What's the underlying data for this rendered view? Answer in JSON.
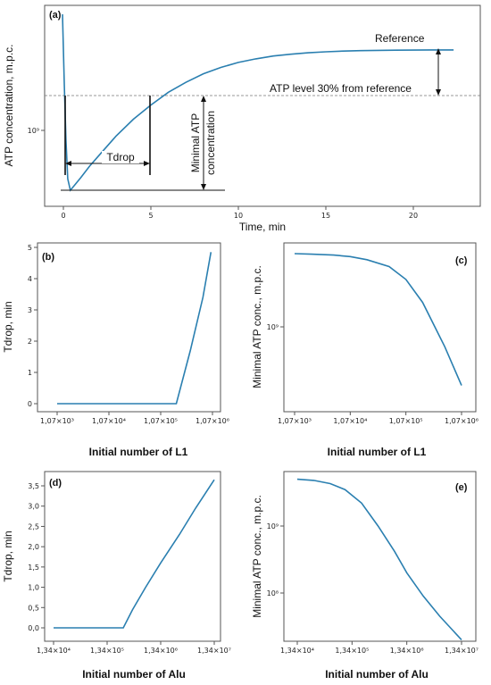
{
  "colors": {
    "curve": "#2a7fb0",
    "axis": "#555555",
    "text": "#111111",
    "dashed": "#777777"
  },
  "chart_data": [
    {
      "id": "a",
      "panel_label": "(a)",
      "type": "line",
      "xlabel": "Time, min",
      "ylabel": "ATP concentration, m.p.c.",
      "x_ticks": [
        "0",
        "5",
        "10",
        "15",
        "20"
      ],
      "y_ticks": [
        "10⁹"
      ],
      "xlim": [
        -1.2,
        23.5
      ],
      "series": [
        {
          "x": [
            -0.05,
            0.05,
            0.15,
            0.25,
            0.4,
            0.6,
            1,
            1.5,
            2,
            3,
            4,
            5,
            6,
            7,
            8,
            9,
            10,
            11,
            12,
            13,
            14,
            15,
            16,
            17,
            18,
            19,
            20,
            21,
            22.3
          ],
          "y": [
            1.0,
            0.75,
            0.35,
            0.08,
            0.0,
            0.03,
            0.09,
            0.17,
            0.24,
            0.38,
            0.5,
            0.6,
            0.69,
            0.76,
            0.82,
            0.865,
            0.9,
            0.925,
            0.945,
            0.958,
            0.968,
            0.975,
            0.98,
            0.983,
            0.985,
            0.986,
            0.987,
            0.988,
            0.988
          ]
        }
      ],
      "annotations": {
        "reference": "Reference",
        "atp_level": "ATP level 30% from reference",
        "tdrop": "Tdrop",
        "minimal_line1": "Minimal ATP",
        "minimal_line2": "concentration"
      }
    },
    {
      "id": "b",
      "panel_label": "(b)",
      "type": "line",
      "xlabel": "Initial number of L1",
      "ylabel": "Tdrop, min",
      "x_scale": "log",
      "x_ticks": [
        "1,07×10³",
        "1,07×10⁴",
        "1,07×10⁵",
        "1,07×10⁶"
      ],
      "y_ticks": [
        "0",
        "1",
        "2",
        "3",
        "4",
        "5"
      ],
      "ylim": [
        -0.15,
        5.05
      ],
      "series": [
        {
          "x": [
            1070,
            2000,
            5000,
            10000,
            30000,
            100000,
            214000,
            400000,
            700000,
            1000000
          ],
          "y": [
            0,
            0,
            0,
            0,
            0,
            0,
            0,
            1.7,
            3.4,
            4.85
          ]
        }
      ]
    },
    {
      "id": "c",
      "panel_label": "(c)",
      "type": "line",
      "xlabel": "Initial number of L1",
      "ylabel": "Minimal ATP conc., m.p.c.",
      "x_scale": "log",
      "y_scale": "log",
      "x_ticks": [
        "1,07×10³",
        "1,07×10⁴",
        "1,07×10⁵",
        "1,07×10⁶"
      ],
      "y_ticks": [
        "10⁹"
      ],
      "series": [
        {
          "x": [
            1070,
            2140,
            5350,
            10700,
            21400,
            53500,
            107000,
            214000,
            535000,
            1070000
          ],
          "y": [
            4900000000.0,
            4850000000.0,
            4750000000.0,
            4600000000.0,
            4300000000.0,
            3700000000.0,
            2800000000.0,
            1700000000.0,
            650000000.0,
            280000000.0
          ]
        }
      ]
    },
    {
      "id": "d",
      "panel_label": "(d)",
      "type": "line",
      "xlabel": "Initial number of Alu",
      "ylabel": "Tdrop, min",
      "x_scale": "log",
      "x_ticks": [
        "1,34×10⁴",
        "1,34×10⁵",
        "1,34×10⁶",
        "1,34×10⁷"
      ],
      "y_ticks": [
        "0,0",
        "0,5",
        "1,0",
        "1,5",
        "2,0",
        "2,5",
        "3,0",
        "3,5"
      ],
      "ylim": [
        -0.1,
        3.75
      ],
      "series": [
        {
          "x": [
            13400,
            50000,
            200000,
            268000,
            400000,
            700000,
            1340000,
            3000000,
            6000000,
            13400000
          ],
          "y": [
            0,
            0,
            0,
            0,
            0.45,
            1.0,
            1.6,
            2.3,
            2.95,
            3.65
          ]
        }
      ]
    },
    {
      "id": "e",
      "panel_label": "(e)",
      "type": "line",
      "xlabel": "Initial number of Alu",
      "ylabel": "Minimal ATP conc., m.p.c.",
      "x_scale": "log",
      "y_scale": "log",
      "x_ticks": [
        "1,34×10⁴",
        "1,34×10⁵",
        "1,34×10⁶",
        "1,34×10⁷"
      ],
      "y_ticks": [
        "10⁹",
        "10⁸"
      ],
      "series": [
        {
          "x": [
            13400,
            26800,
            53600,
            100000,
            200000,
            400000,
            800000,
            1340000,
            2680000,
            5360000,
            13400000
          ],
          "y": [
            5000000000.0,
            4800000000.0,
            4300000000.0,
            3500000000.0,
            2200000000.0,
            1000000000.0,
            420000000.0,
            200000000.0,
            90000000.0,
            45000000.0,
            20000000.0
          ]
        }
      ]
    }
  ]
}
